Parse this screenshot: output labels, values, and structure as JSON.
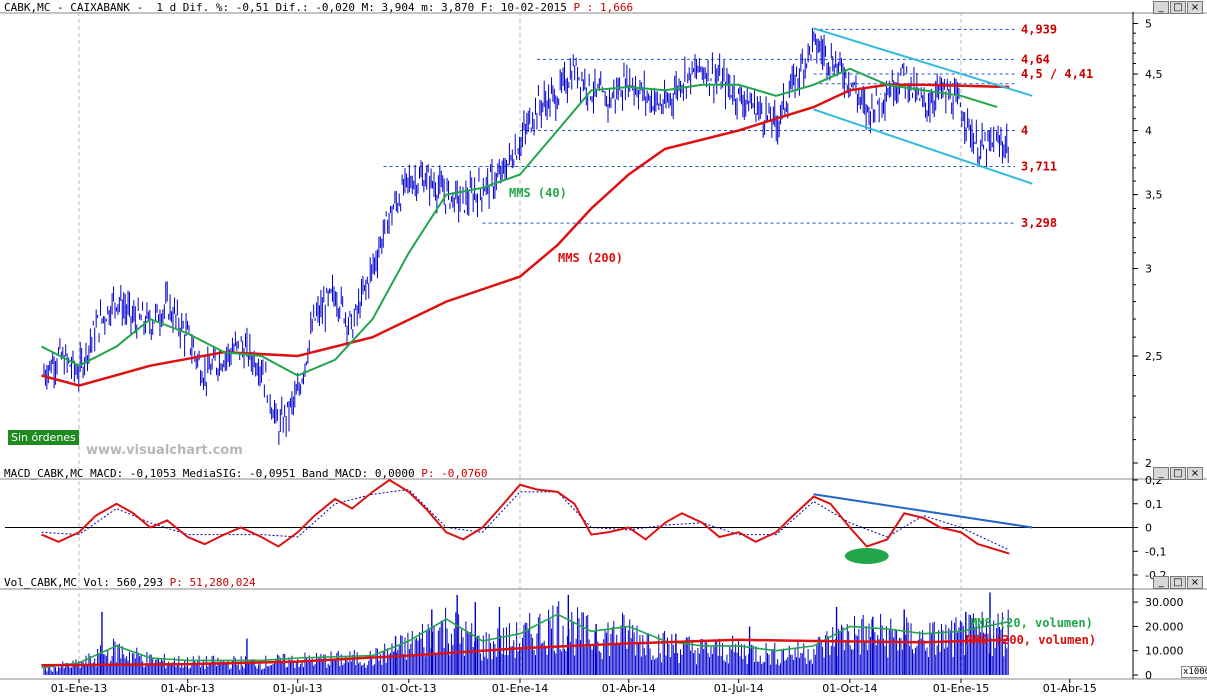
{
  "price_header": {
    "text": "CABK,MC - CAIXABANK -  1 d Dif. %: -0,51 Dif.: -0,020 M: 3,904 m: 3,870 F: 10-02-2015",
    "p_label": " P : 1,666"
  },
  "macd_header": {
    "text": "MACD_CABK,MC MACD: -0,1053 MediaSIG: -0,0951 Band_MACD: 0,0000",
    "p_label": " P: -0,0760"
  },
  "vol_header": {
    "text": "Vol_CABK,MC Vol: 560,293",
    "p_label": " P: 51,280,024"
  },
  "badge": "Sin órdenes",
  "watermark": "www.visualchart.com",
  "window_buttons": [
    "minimize-icon",
    "maximize-icon",
    "close-icon"
  ],
  "labels": {
    "mms40": "MMS (40)",
    "mms200": "MMS (200)",
    "mms20vol": "MMS (20, volumen)",
    "mms200vol": "MMS (200, volumen)",
    "vol_unit": "x1000"
  },
  "colors": {
    "price_bars": "#0000cc",
    "mms40": "#22a64a",
    "mms200": "#dd1111",
    "trend_channel": "#33bbdd",
    "level_lines": "#2255cc",
    "level_labels": "#cc0000",
    "macd_line": "#dd1111",
    "macd_signal": "#0000aa",
    "macd_trend": "#2266cc",
    "macd_highlight": "#22a64a",
    "volume_bars": "#0000cc",
    "volume_ma20": "#22a64a",
    "volume_ma200": "#dd1111"
  },
  "chart_data": [
    {
      "type": "line",
      "name": "price",
      "x_ticks": [
        "01-Ene-13",
        "01-Abr-13",
        "01-Jul-13",
        "01-Oct-13",
        "01-Ene-14",
        "01-Abr-14",
        "01-Jul-14",
        "01-Oct-14",
        "01-Ene-15",
        "01-Abr-15"
      ],
      "y_ticks": [
        "5",
        "4,5",
        "4",
        "3,5",
        "3",
        "2,5",
        "2"
      ],
      "y_scale": "log",
      "ylim": [
        2,
        5.1
      ],
      "levels": [
        {
          "value": 4.939,
          "label": "4,939"
        },
        {
          "value": 4.64,
          "label": "4,64"
        },
        {
          "value": 4.5,
          "label": "4,5 / 4,41"
        },
        {
          "value": 4.41,
          "label": ""
        },
        {
          "value": 4.0,
          "label": "4"
        },
        {
          "value": 3.711,
          "label": "3,711"
        },
        {
          "value": 3.298,
          "label": "3,298"
        }
      ],
      "close": [
        [
          "2012-12-01",
          2.4
        ],
        [
          "2012-12-15",
          2.5
        ],
        [
          "2013-01-01",
          2.42
        ],
        [
          "2013-01-15",
          2.65
        ],
        [
          "2013-02-01",
          2.82
        ],
        [
          "2013-02-15",
          2.7
        ],
        [
          "2013-03-01",
          2.68
        ],
        [
          "2013-03-15",
          2.78
        ],
        [
          "2013-04-01",
          2.6
        ],
        [
          "2013-04-15",
          2.4
        ],
        [
          "2013-05-01",
          2.5
        ],
        [
          "2013-05-15",
          2.55
        ],
        [
          "2013-06-01",
          2.45
        ],
        [
          "2013-06-15",
          2.15
        ],
        [
          "2013-07-01",
          2.3
        ],
        [
          "2013-07-15",
          2.7
        ],
        [
          "2013-08-01",
          2.85
        ],
        [
          "2013-08-15",
          2.65
        ],
        [
          "2013-09-01",
          3.0
        ],
        [
          "2013-09-15",
          3.35
        ],
        [
          "2013-10-01",
          3.6
        ],
        [
          "2013-10-15",
          3.62
        ],
        [
          "2013-11-01",
          3.5
        ],
        [
          "2013-11-15",
          3.45
        ],
        [
          "2013-12-01",
          3.55
        ],
        [
          "2013-12-15",
          3.62
        ],
        [
          "2014-01-01",
          3.9
        ],
        [
          "2014-01-15",
          4.2
        ],
        [
          "2014-02-01",
          4.3
        ],
        [
          "2014-02-15",
          4.55
        ],
        [
          "2014-03-01",
          4.35
        ],
        [
          "2014-03-15",
          4.25
        ],
        [
          "2014-04-01",
          4.45
        ],
        [
          "2014-04-15",
          4.3
        ],
        [
          "2014-05-01",
          4.2
        ],
        [
          "2014-05-15",
          4.45
        ],
        [
          "2014-06-01",
          4.55
        ],
        [
          "2014-06-15",
          4.45
        ],
        [
          "2014-07-01",
          4.3
        ],
        [
          "2014-07-15",
          4.2
        ],
        [
          "2014-08-01",
          4.05
        ],
        [
          "2014-08-15",
          4.4
        ],
        [
          "2014-09-01",
          4.8
        ],
        [
          "2014-09-15",
          4.65
        ],
        [
          "2014-10-01",
          4.45
        ],
        [
          "2014-10-15",
          4.15
        ],
        [
          "2014-11-01",
          4.35
        ],
        [
          "2014-11-15",
          4.5
        ],
        [
          "2014-12-01",
          4.2
        ],
        [
          "2014-12-15",
          4.35
        ],
        [
          "2015-01-01",
          4.2
        ],
        [
          "2015-01-15",
          3.85
        ],
        [
          "2015-02-10",
          3.9
        ]
      ],
      "mms40": [
        [
          "2012-12-01",
          2.55
        ],
        [
          "2013-01-01",
          2.45
        ],
        [
          "2013-02-01",
          2.55
        ],
        [
          "2013-03-01",
          2.7
        ],
        [
          "2013-04-01",
          2.62
        ],
        [
          "2013-05-01",
          2.52
        ],
        [
          "2013-06-01",
          2.5
        ],
        [
          "2013-07-01",
          2.4
        ],
        [
          "2013-08-01",
          2.48
        ],
        [
          "2013-09-01",
          2.7
        ],
        [
          "2013-10-01",
          3.1
        ],
        [
          "2013-11-01",
          3.5
        ],
        [
          "2013-12-01",
          3.55
        ],
        [
          "2014-01-01",
          3.65
        ],
        [
          "2014-02-01",
          4.0
        ],
        [
          "2014-03-01",
          4.35
        ],
        [
          "2014-04-01",
          4.38
        ],
        [
          "2014-05-01",
          4.35
        ],
        [
          "2014-06-01",
          4.4
        ],
        [
          "2014-07-01",
          4.4
        ],
        [
          "2014-08-01",
          4.3
        ],
        [
          "2014-09-01",
          4.4
        ],
        [
          "2014-10-01",
          4.55
        ],
        [
          "2014-11-01",
          4.4
        ],
        [
          "2014-12-01",
          4.35
        ],
        [
          "2015-01-01",
          4.3
        ],
        [
          "2015-01-31",
          4.2
        ]
      ],
      "mms200": [
        [
          "2012-12-01",
          2.4
        ],
        [
          "2013-01-01",
          2.35
        ],
        [
          "2013-03-01",
          2.45
        ],
        [
          "2013-05-01",
          2.52
        ],
        [
          "2013-07-01",
          2.5
        ],
        [
          "2013-09-01",
          2.6
        ],
        [
          "2013-11-01",
          2.8
        ],
        [
          "2014-01-01",
          2.95
        ],
        [
          "2014-02-01",
          3.15
        ],
        [
          "2014-03-01",
          3.4
        ],
        [
          "2014-04-01",
          3.65
        ],
        [
          "2014-05-01",
          3.85
        ],
        [
          "2014-07-01",
          4.0
        ],
        [
          "2014-08-01",
          4.1
        ],
        [
          "2014-09-01",
          4.2
        ],
        [
          "2014-10-01",
          4.35
        ],
        [
          "2014-11-01",
          4.4
        ],
        [
          "2014-12-01",
          4.4
        ],
        [
          "2015-02-10",
          4.38
        ]
      ],
      "channel_upper": [
        [
          "2014-09-01",
          4.95
        ],
        [
          "2015-03-01",
          4.3
        ]
      ],
      "channel_lower": [
        [
          "2014-09-01",
          4.18
        ],
        [
          "2015-03-01",
          3.58
        ]
      ]
    },
    {
      "type": "line",
      "name": "macd",
      "y_ticks": [
        "0,2",
        "0,1",
        "0",
        "-0,1",
        "-0,2"
      ],
      "ylim": [
        -0.2,
        0.2
      ],
      "macd": [
        [
          "2012-12-01",
          -0.03
        ],
        [
          "2012-12-15",
          -0.06
        ],
        [
          "2013-01-01",
          -0.02
        ],
        [
          "2013-01-15",
          0.05
        ],
        [
          "2013-02-01",
          0.1
        ],
        [
          "2013-02-15",
          0.06
        ],
        [
          "2013-03-01",
          0.0
        ],
        [
          "2013-03-15",
          0.03
        ],
        [
          "2013-04-01",
          -0.04
        ],
        [
          "2013-04-15",
          -0.07
        ],
        [
          "2013-05-01",
          -0.03
        ],
        [
          "2013-05-15",
          0.0
        ],
        [
          "2013-06-01",
          -0.04
        ],
        [
          "2013-06-15",
          -0.08
        ],
        [
          "2013-07-01",
          -0.02
        ],
        [
          "2013-07-15",
          0.05
        ],
        [
          "2013-08-01",
          0.12
        ],
        [
          "2013-08-15",
          0.08
        ],
        [
          "2013-09-01",
          0.15
        ],
        [
          "2013-09-15",
          0.2
        ],
        [
          "2013-10-01",
          0.15
        ],
        [
          "2013-10-15",
          0.08
        ],
        [
          "2013-11-01",
          -0.02
        ],
        [
          "2013-11-15",
          -0.05
        ],
        [
          "2013-12-01",
          0.0
        ],
        [
          "2013-12-15",
          0.08
        ],
        [
          "2014-01-01",
          0.18
        ],
        [
          "2014-01-15",
          0.16
        ],
        [
          "2014-02-01",
          0.15
        ],
        [
          "2014-02-15",
          0.1
        ],
        [
          "2014-03-01",
          -0.03
        ],
        [
          "2014-03-15",
          -0.02
        ],
        [
          "2014-04-01",
          0.0
        ],
        [
          "2014-04-15",
          -0.05
        ],
        [
          "2014-05-01",
          0.02
        ],
        [
          "2014-05-15",
          0.06
        ],
        [
          "2014-06-01",
          0.02
        ],
        [
          "2014-06-15",
          -0.04
        ],
        [
          "2014-07-01",
          -0.02
        ],
        [
          "2014-07-15",
          -0.06
        ],
        [
          "2014-08-01",
          -0.02
        ],
        [
          "2014-08-15",
          0.05
        ],
        [
          "2014-09-01",
          0.13
        ],
        [
          "2014-09-15",
          0.1
        ],
        [
          "2014-10-01",
          0.0
        ],
        [
          "2014-10-15",
          -0.08
        ],
        [
          "2014-11-01",
          -0.05
        ],
        [
          "2014-11-15",
          0.06
        ],
        [
          "2014-12-01",
          0.04
        ],
        [
          "2014-12-15",
          0.0
        ],
        [
          "2015-01-01",
          -0.02
        ],
        [
          "2015-01-15",
          -0.07
        ],
        [
          "2015-02-10",
          -0.11
        ]
      ],
      "signal": [
        [
          "2012-12-01",
          -0.02
        ],
        [
          "2013-01-01",
          -0.03
        ],
        [
          "2013-02-01",
          0.08
        ],
        [
          "2013-03-01",
          0.02
        ],
        [
          "2013-04-01",
          -0.03
        ],
        [
          "2013-05-01",
          -0.03
        ],
        [
          "2013-06-01",
          -0.03
        ],
        [
          "2013-07-01",
          -0.04
        ],
        [
          "2013-08-01",
          0.1
        ],
        [
          "2013-09-01",
          0.14
        ],
        [
          "2013-10-01",
          0.16
        ],
        [
          "2013-11-01",
          0.0
        ],
        [
          "2013-12-01",
          -0.02
        ],
        [
          "2014-01-01",
          0.15
        ],
        [
          "2014-02-01",
          0.15
        ],
        [
          "2014-03-01",
          0.0
        ],
        [
          "2014-04-01",
          -0.01
        ],
        [
          "2014-05-01",
          0.01
        ],
        [
          "2014-06-01",
          0.02
        ],
        [
          "2014-07-01",
          -0.03
        ],
        [
          "2014-08-01",
          -0.03
        ],
        [
          "2014-09-01",
          0.11
        ],
        [
          "2014-10-01",
          0.02
        ],
        [
          "2014-11-01",
          -0.04
        ],
        [
          "2014-12-01",
          0.05
        ],
        [
          "2015-01-01",
          0.0
        ],
        [
          "2015-02-10",
          -0.095
        ]
      ],
      "trendline": [
        [
          "2014-09-01",
          0.14
        ],
        [
          "2015-03-01",
          0.0
        ]
      ],
      "highlight": {
        "x": "2014-10-15",
        "y": -0.12
      }
    },
    {
      "type": "bar",
      "name": "volume",
      "y_ticks": [
        "30.000",
        "20.000",
        "10.000",
        "0"
      ],
      "ylim": [
        0,
        35000
      ],
      "unit": "x1000",
      "mms20": [
        [
          "2012-12-01",
          3000
        ],
        [
          "2013-01-01",
          5000
        ],
        [
          "2013-02-01",
          12000
        ],
        [
          "2013-03-01",
          7000
        ],
        [
          "2013-04-01",
          6000
        ],
        [
          "2013-06-01",
          6000
        ],
        [
          "2013-07-01",
          7000
        ],
        [
          "2013-09-01",
          8000
        ],
        [
          "2013-10-01",
          14000
        ],
        [
          "2013-11-01",
          23000
        ],
        [
          "2013-12-01",
          14000
        ],
        [
          "2014-01-01",
          17000
        ],
        [
          "2014-02-01",
          25000
        ],
        [
          "2014-03-01",
          18000
        ],
        [
          "2014-04-01",
          20000
        ],
        [
          "2014-05-01",
          14000
        ],
        [
          "2014-06-01",
          12000
        ],
        [
          "2014-07-01",
          12000
        ],
        [
          "2014-08-01",
          10000
        ],
        [
          "2014-09-01",
          12000
        ],
        [
          "2014-10-01",
          20000
        ],
        [
          "2014-11-01",
          19000
        ],
        [
          "2014-12-01",
          17000
        ],
        [
          "2015-01-01",
          18000
        ],
        [
          "2015-02-10",
          22000
        ]
      ],
      "mms200": [
        [
          "2012-12-01",
          4000
        ],
        [
          "2013-04-01",
          4500
        ],
        [
          "2013-07-01",
          5500
        ],
        [
          "2013-10-01",
          8000
        ],
        [
          "2014-01-01",
          11000
        ],
        [
          "2014-04-01",
          13000
        ],
        [
          "2014-07-01",
          14500
        ],
        [
          "2014-09-01",
          14000
        ],
        [
          "2014-12-01",
          13500
        ],
        [
          "2015-02-10",
          14500
        ]
      ],
      "spikes": [
        [
          "2013-01-20",
          26000
        ],
        [
          "2013-05-20",
          15000
        ],
        [
          "2013-09-20",
          16000
        ],
        [
          "2013-10-20",
          27000
        ],
        [
          "2013-11-10",
          33000
        ],
        [
          "2013-11-25",
          30000
        ],
        [
          "2013-12-15",
          28000
        ],
        [
          "2014-02-10",
          33000
        ],
        [
          "2014-03-05",
          21000
        ],
        [
          "2014-05-10",
          17000
        ],
        [
          "2014-07-10",
          20000
        ],
        [
          "2014-09-20",
          28000
        ],
        [
          "2014-10-20",
          24000
        ],
        [
          "2014-11-15",
          27000
        ],
        [
          "2015-01-05",
          26000
        ],
        [
          "2015-01-25",
          34000
        ]
      ]
    }
  ]
}
